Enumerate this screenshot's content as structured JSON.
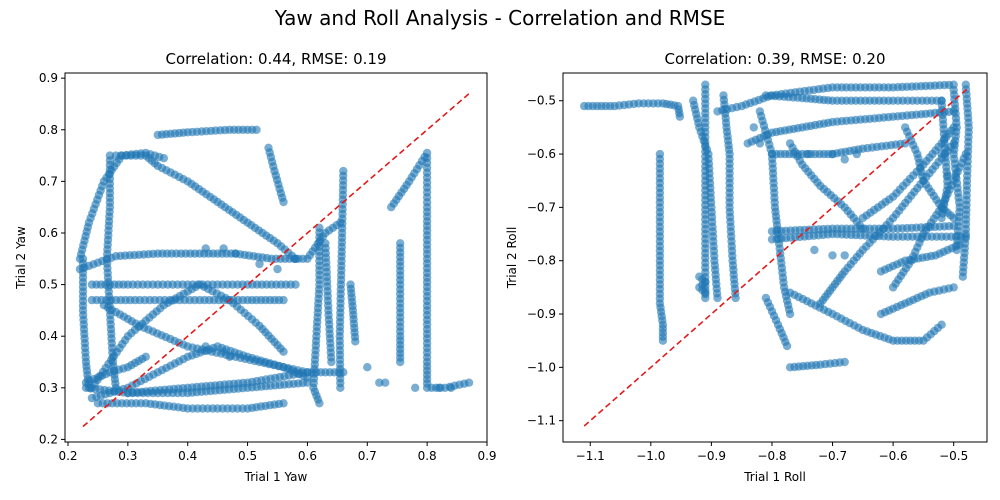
{
  "figure": {
    "title": "Yaw and Roll Analysis - Correlation and RMSE"
  },
  "colors": {
    "points": "#1f77b4",
    "reference_line": "#e41a1c",
    "axes": "#000000"
  },
  "chart_data": [
    {
      "type": "scatter",
      "title": "Correlation: 0.44, RMSE: 0.19",
      "xlabel": "Trial 1 Yaw",
      "ylabel": "Trial 2 Yaw",
      "xlim": [
        0.195,
        0.9
      ],
      "ylim": [
        0.195,
        0.91
      ],
      "xticks": [
        0.2,
        0.3,
        0.4,
        0.5,
        0.6,
        0.7,
        0.8,
        0.9
      ],
      "xtick_labels": [
        "0.2",
        "0.3",
        "0.4",
        "0.5",
        "0.6",
        "0.7",
        "0.8",
        "0.9"
      ],
      "yticks": [
        0.2,
        0.3,
        0.4,
        0.5,
        0.6,
        0.7,
        0.8,
        0.9
      ],
      "ytick_labels": [
        "0.2",
        "0.3",
        "0.4",
        "0.5",
        "0.6",
        "0.7",
        "0.8",
        "0.9"
      ],
      "grid": false,
      "reference_line": {
        "x": [
          0.225,
          0.87
        ],
        "y": [
          0.225,
          0.87
        ],
        "style": "dashed"
      },
      "paths": [
        [
          [
            0.22,
            0.55
          ],
          [
            0.235,
            0.62
          ],
          [
            0.26,
            0.7
          ],
          [
            0.29,
            0.75
          ],
          [
            0.33,
            0.755
          ],
          [
            0.36,
            0.745
          ]
        ],
        [
          [
            0.35,
            0.79
          ],
          [
            0.4,
            0.795
          ],
          [
            0.47,
            0.8
          ],
          [
            0.515,
            0.8
          ]
        ],
        [
          [
            0.28,
            0.75
          ],
          [
            0.33,
            0.75
          ],
          [
            0.35,
            0.73
          ],
          [
            0.4,
            0.7
          ],
          [
            0.45,
            0.66
          ],
          [
            0.5,
            0.62
          ],
          [
            0.55,
            0.58
          ],
          [
            0.58,
            0.55
          ]
        ],
        [
          [
            0.22,
            0.53
          ],
          [
            0.28,
            0.555
          ],
          [
            0.35,
            0.56
          ],
          [
            0.42,
            0.56
          ],
          [
            0.48,
            0.56
          ],
          [
            0.54,
            0.55
          ],
          [
            0.6,
            0.55
          ],
          [
            0.63,
            0.6
          ],
          [
            0.655,
            0.62
          ]
        ],
        [
          [
            0.24,
            0.5
          ],
          [
            0.3,
            0.5
          ],
          [
            0.4,
            0.5
          ],
          [
            0.5,
            0.5
          ],
          [
            0.58,
            0.5
          ]
        ],
        [
          [
            0.24,
            0.47
          ],
          [
            0.32,
            0.47
          ],
          [
            0.42,
            0.47
          ],
          [
            0.5,
            0.47
          ],
          [
            0.56,
            0.47
          ]
        ],
        [
          [
            0.24,
            0.3
          ],
          [
            0.3,
            0.4
          ],
          [
            0.36,
            0.46
          ],
          [
            0.42,
            0.5
          ],
          [
            0.47,
            0.47
          ],
          [
            0.52,
            0.42
          ],
          [
            0.56,
            0.37
          ]
        ],
        [
          [
            0.26,
            0.46
          ],
          [
            0.32,
            0.42
          ],
          [
            0.4,
            0.38
          ],
          [
            0.48,
            0.36
          ],
          [
            0.56,
            0.34
          ],
          [
            0.6,
            0.33
          ]
        ],
        [
          [
            0.23,
            0.3
          ],
          [
            0.3,
            0.29
          ],
          [
            0.4,
            0.3
          ],
          [
            0.5,
            0.31
          ],
          [
            0.6,
            0.33
          ],
          [
            0.66,
            0.33
          ]
        ],
        [
          [
            0.25,
            0.27
          ],
          [
            0.33,
            0.27
          ],
          [
            0.4,
            0.26
          ],
          [
            0.5,
            0.26
          ],
          [
            0.56,
            0.27
          ]
        ],
        [
          [
            0.24,
            0.28
          ],
          [
            0.3,
            0.3
          ],
          [
            0.35,
            0.33
          ],
          [
            0.4,
            0.36
          ],
          [
            0.45,
            0.38
          ],
          [
            0.5,
            0.36
          ],
          [
            0.56,
            0.34
          ],
          [
            0.6,
            0.32
          ]
        ],
        [
          [
            0.27,
            0.75
          ],
          [
            0.27,
            0.65
          ],
          [
            0.265,
            0.55
          ],
          [
            0.27,
            0.45
          ],
          [
            0.275,
            0.35
          ],
          [
            0.28,
            0.3
          ]
        ],
        [
          [
            0.225,
            0.55
          ],
          [
            0.225,
            0.45
          ],
          [
            0.23,
            0.35
          ],
          [
            0.235,
            0.3
          ]
        ],
        [
          [
            0.3,
            0.29
          ],
          [
            0.4,
            0.29
          ],
          [
            0.5,
            0.3
          ],
          [
            0.6,
            0.31
          ]
        ],
        [
          [
            0.23,
            0.31
          ],
          [
            0.27,
            0.33
          ],
          [
            0.3,
            0.34
          ],
          [
            0.33,
            0.36
          ]
        ],
        [
          [
            0.535,
            0.765
          ],
          [
            0.545,
            0.72
          ],
          [
            0.56,
            0.66
          ]
        ],
        [
          [
            0.62,
            0.61
          ],
          [
            0.62,
            0.5
          ],
          [
            0.615,
            0.4
          ],
          [
            0.61,
            0.3
          ],
          [
            0.62,
            0.27
          ]
        ],
        [
          [
            0.66,
            0.72
          ],
          [
            0.658,
            0.6
          ],
          [
            0.656,
            0.5
          ],
          [
            0.654,
            0.4
          ],
          [
            0.655,
            0.3
          ]
        ],
        [
          [
            0.63,
            0.58
          ],
          [
            0.635,
            0.45
          ],
          [
            0.64,
            0.35
          ]
        ],
        [
          [
            0.68,
            0.39
          ],
          [
            0.676,
            0.45
          ],
          [
            0.672,
            0.5
          ]
        ],
        [
          [
            0.755,
            0.58
          ],
          [
            0.755,
            0.5
          ],
          [
            0.755,
            0.4
          ],
          [
            0.755,
            0.35
          ]
        ],
        [
          [
            0.74,
            0.65
          ],
          [
            0.77,
            0.7
          ],
          [
            0.8,
            0.755
          ],
          [
            0.8,
            0.65
          ],
          [
            0.8,
            0.55
          ],
          [
            0.8,
            0.45
          ],
          [
            0.8,
            0.35
          ],
          [
            0.8,
            0.3
          ],
          [
            0.83,
            0.3
          ],
          [
            0.87,
            0.31
          ]
        ]
      ],
      "extra_points": [
        [
          0.43,
          0.57
        ],
        [
          0.46,
          0.57
        ],
        [
          0.48,
          0.56
        ],
        [
          0.43,
          0.38
        ],
        [
          0.46,
          0.37
        ],
        [
          0.47,
          0.36
        ],
        [
          0.52,
          0.54
        ],
        [
          0.55,
          0.53
        ],
        [
          0.58,
          0.55
        ],
        [
          0.7,
          0.34
        ],
        [
          0.72,
          0.31
        ],
        [
          0.73,
          0.31
        ],
        [
          0.78,
          0.3
        ],
        [
          0.82,
          0.3
        ],
        [
          0.84,
          0.3
        ]
      ]
    },
    {
      "type": "scatter",
      "title": "Correlation: 0.39, RMSE: 0.20",
      "xlabel": "Trial 1 Roll",
      "ylabel": "Trial 2 Roll",
      "xlim": [
        -1.145,
        -0.445
      ],
      "ylim": [
        -1.14,
        -0.448
      ],
      "xticks": [
        -1.1,
        -1.0,
        -0.9,
        -0.8,
        -0.7,
        -0.6,
        -0.5
      ],
      "xtick_labels": [
        "−1.1",
        "−1.0",
        "−0.9",
        "−0.8",
        "−0.7",
        "−0.6",
        "−0.5"
      ],
      "yticks": [
        -1.1,
        -1.0,
        -0.9,
        -0.8,
        -0.7,
        -0.6,
        -0.5
      ],
      "ytick_labels": [
        "−1.1",
        "−1.0",
        "−0.9",
        "−0.8",
        "−0.7",
        "−0.6",
        "−0.5"
      ],
      "grid": false,
      "reference_line": {
        "x": [
          -1.11,
          -0.475
        ],
        "y": [
          -1.11,
          -0.475
        ],
        "style": "dashed"
      },
      "paths": [
        [
          [
            -1.11,
            -0.51
          ],
          [
            -1.06,
            -0.51
          ],
          [
            -1.02,
            -0.505
          ],
          [
            -0.98,
            -0.505
          ],
          [
            -0.955,
            -0.51
          ],
          [
            -0.952,
            -0.53
          ]
        ],
        [
          [
            -0.985,
            -0.6
          ],
          [
            -0.985,
            -0.7
          ],
          [
            -0.985,
            -0.8
          ],
          [
            -0.985,
            -0.88
          ],
          [
            -0.98,
            -0.92
          ],
          [
            -0.98,
            -0.95
          ]
        ],
        [
          [
            -0.91,
            -0.47
          ],
          [
            -0.91,
            -0.55
          ],
          [
            -0.91,
            -0.65
          ],
          [
            -0.91,
            -0.75
          ],
          [
            -0.91,
            -0.84
          ],
          [
            -0.91,
            -0.87
          ]
        ],
        [
          [
            -0.93,
            -0.5
          ],
          [
            -0.92,
            -0.55
          ],
          [
            -0.905,
            -0.6
          ],
          [
            -0.9,
            -0.7
          ],
          [
            -0.895,
            -0.8
          ],
          [
            -0.89,
            -0.87
          ]
        ],
        [
          [
            -0.88,
            -0.49
          ],
          [
            -0.875,
            -0.55
          ],
          [
            -0.87,
            -0.6
          ],
          [
            -0.87,
            -0.7
          ],
          [
            -0.865,
            -0.8
          ],
          [
            -0.86,
            -0.87
          ]
        ],
        [
          [
            -0.92,
            -0.83
          ],
          [
            -0.91,
            -0.84
          ],
          [
            -0.92,
            -0.85
          ],
          [
            -0.91,
            -0.86
          ]
        ],
        [
          [
            -0.89,
            -0.52
          ],
          [
            -0.85,
            -0.51
          ],
          [
            -0.8,
            -0.49
          ],
          [
            -0.7,
            -0.475
          ],
          [
            -0.6,
            -0.475
          ],
          [
            -0.5,
            -0.47
          ]
        ],
        [
          [
            -0.84,
            -0.58
          ],
          [
            -0.8,
            -0.56
          ],
          [
            -0.75,
            -0.55
          ],
          [
            -0.7,
            -0.54
          ],
          [
            -0.6,
            -0.53
          ],
          [
            -0.5,
            -0.52
          ]
        ],
        [
          [
            -0.81,
            -0.49
          ],
          [
            -0.75,
            -0.495
          ],
          [
            -0.7,
            -0.5
          ],
          [
            -0.6,
            -0.5
          ],
          [
            -0.52,
            -0.5
          ]
        ],
        [
          [
            -0.8,
            -0.6
          ],
          [
            -0.75,
            -0.6
          ],
          [
            -0.7,
            -0.6
          ],
          [
            -0.65,
            -0.59
          ],
          [
            -0.58,
            -0.58
          ]
        ],
        [
          [
            -0.82,
            -0.52
          ],
          [
            -0.8,
            -0.6
          ],
          [
            -0.795,
            -0.7
          ],
          [
            -0.79,
            -0.75
          ],
          [
            -0.78,
            -0.85
          ],
          [
            -0.77,
            -0.9
          ]
        ],
        [
          [
            -0.77,
            -0.58
          ],
          [
            -0.75,
            -0.62
          ],
          [
            -0.72,
            -0.66
          ],
          [
            -0.68,
            -0.7
          ],
          [
            -0.65,
            -0.74
          ]
        ],
        [
          [
            -0.8,
            -0.745
          ],
          [
            -0.7,
            -0.74
          ],
          [
            -0.6,
            -0.74
          ],
          [
            -0.5,
            -0.735
          ]
        ],
        [
          [
            -0.8,
            -0.76
          ],
          [
            -0.7,
            -0.75
          ],
          [
            -0.6,
            -0.755
          ],
          [
            -0.48,
            -0.755
          ]
        ],
        [
          [
            -0.77,
            -0.86
          ],
          [
            -0.7,
            -0.9
          ],
          [
            -0.65,
            -0.93
          ],
          [
            -0.6,
            -0.95
          ],
          [
            -0.55,
            -0.95
          ],
          [
            -0.52,
            -0.92
          ]
        ],
        [
          [
            -0.77,
            -1.0
          ],
          [
            -0.72,
            -0.995
          ],
          [
            -0.68,
            -0.99
          ]
        ],
        [
          [
            -0.72,
            -0.88
          ],
          [
            -0.7,
            -0.85
          ],
          [
            -0.68,
            -0.82
          ],
          [
            -0.65,
            -0.78
          ],
          [
            -0.6,
            -0.72
          ],
          [
            -0.55,
            -0.65
          ],
          [
            -0.5,
            -0.58
          ]
        ],
        [
          [
            -0.6,
            -0.85
          ],
          [
            -0.57,
            -0.8
          ],
          [
            -0.55,
            -0.75
          ],
          [
            -0.52,
            -0.7
          ],
          [
            -0.5,
            -0.65
          ],
          [
            -0.48,
            -0.6
          ]
        ],
        [
          [
            -0.58,
            -0.55
          ],
          [
            -0.56,
            -0.6
          ],
          [
            -0.55,
            -0.65
          ],
          [
            -0.52,
            -0.7
          ],
          [
            -0.5,
            -0.72
          ]
        ],
        [
          [
            -0.62,
            -0.82
          ],
          [
            -0.58,
            -0.8
          ],
          [
            -0.53,
            -0.79
          ],
          [
            -0.49,
            -0.77
          ]
        ],
        [
          [
            -0.48,
            -0.47
          ],
          [
            -0.475,
            -0.55
          ],
          [
            -0.478,
            -0.65
          ],
          [
            -0.48,
            -0.75
          ],
          [
            -0.485,
            -0.83
          ]
        ],
        [
          [
            -0.5,
            -0.48
          ],
          [
            -0.495,
            -0.55
          ],
          [
            -0.5,
            -0.6
          ],
          [
            -0.49,
            -0.7
          ],
          [
            -0.495,
            -0.78
          ]
        ],
        [
          [
            -0.52,
            -0.5
          ],
          [
            -0.515,
            -0.58
          ],
          [
            -0.51,
            -0.66
          ],
          [
            -0.52,
            -0.72
          ]
        ],
        [
          [
            -0.65,
            -0.72
          ],
          [
            -0.6,
            -0.68
          ],
          [
            -0.55,
            -0.62
          ],
          [
            -0.52,
            -0.58
          ],
          [
            -0.5,
            -0.55
          ]
        ],
        [
          [
            -0.62,
            -0.9
          ],
          [
            -0.58,
            -0.88
          ],
          [
            -0.54,
            -0.86
          ],
          [
            -0.5,
            -0.85
          ]
        ],
        [
          [
            -0.81,
            -0.87
          ],
          [
            -0.79,
            -0.92
          ],
          [
            -0.775,
            -0.96
          ]
        ]
      ],
      "extra_points": [
        [
          -0.7,
          -0.6
        ],
        [
          -0.68,
          -0.61
        ],
        [
          -0.66,
          -0.6
        ],
        [
          -0.73,
          -0.78
        ],
        [
          -0.7,
          -0.79
        ],
        [
          -0.68,
          -0.79
        ],
        [
          -0.83,
          -0.55
        ],
        [
          -0.82,
          -0.58
        ],
        [
          -0.74,
          -0.6
        ],
        [
          -0.52,
          -0.6
        ],
        [
          -0.51,
          -0.64
        ]
      ]
    }
  ]
}
